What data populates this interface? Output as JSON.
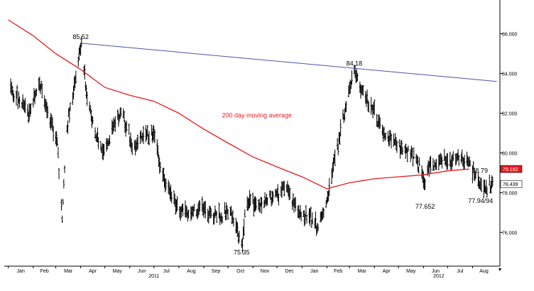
{
  "chart_data": {
    "type": "line",
    "series": [
      {
        "kind": "ohlc-bars",
        "color": "#000000",
        "anchors": [
          [
            "2010-01-04",
            83.3
          ],
          [
            "2010-01-15",
            82.6
          ],
          [
            "2010-01-28",
            82.0
          ],
          [
            "2010-02-08",
            83.6
          ],
          [
            "2010-02-19",
            82.0
          ],
          [
            "2010-03-03",
            80.6
          ],
          [
            "2010-03-09",
            76.7
          ],
          [
            "2010-03-14",
            81.0
          ],
          [
            "2010-03-24",
            83.4
          ],
          [
            "2010-04-02",
            85.52
          ],
          [
            "2010-04-08",
            83.0
          ],
          [
            "2010-04-18",
            81.2
          ],
          [
            "2010-04-30",
            80.0
          ],
          [
            "2010-05-10",
            81.3
          ],
          [
            "2010-05-22",
            82.2
          ],
          [
            "2010-06-04",
            80.2
          ],
          [
            "2010-06-18",
            80.9
          ],
          [
            "2010-07-01",
            81.0
          ],
          [
            "2010-07-10",
            79.0
          ],
          [
            "2010-07-22",
            78.0
          ],
          [
            "2010-08-02",
            77.0
          ],
          [
            "2010-08-18",
            77.0
          ],
          [
            "2010-09-01",
            77.2
          ],
          [
            "2010-09-18",
            76.8
          ],
          [
            "2010-10-05",
            77.0
          ],
          [
            "2010-10-19",
            75.35
          ],
          [
            "2010-10-23",
            77.5
          ],
          [
            "2010-11-05",
            77.4
          ],
          [
            "2010-11-18",
            77.6
          ],
          [
            "2010-12-01",
            78.0
          ],
          [
            "2010-12-14",
            78.2
          ],
          [
            "2010-12-28",
            77.0
          ],
          [
            "2011-01-10",
            76.8
          ],
          [
            "2011-01-21",
            76.2
          ],
          [
            "2011-02-01",
            77.6
          ],
          [
            "2011-02-12",
            80.0
          ],
          [
            "2011-02-24",
            82.2
          ],
          [
            "2011-03-07",
            84.18
          ],
          [
            "2011-03-18",
            83.0
          ],
          [
            "2011-03-30",
            82.2
          ],
          [
            "2011-04-12",
            81.0
          ],
          [
            "2011-04-25",
            80.6
          ],
          [
            "2011-05-09",
            80.2
          ],
          [
            "2011-05-24",
            79.6
          ],
          [
            "2011-06-03",
            78.4
          ],
          [
            "2011-06-09",
            79.4
          ],
          [
            "2011-06-20",
            79.6
          ],
          [
            "2011-07-01",
            79.6
          ],
          [
            "2011-07-14",
            79.8
          ],
          [
            "2011-07-26",
            79.6
          ],
          [
            "2011-08-04",
            78.9
          ],
          [
            "2011-08-15",
            78.2
          ],
          [
            "2011-08-26",
            78.44
          ]
        ]
      },
      {
        "name": "200 day moving average",
        "color": "#e8191f",
        "points": [
          [
            "2010-01-01",
            86.7
          ],
          [
            "2010-02-01",
            85.9
          ],
          [
            "2010-03-01",
            85.0
          ],
          [
            "2010-04-01",
            84.2
          ],
          [
            "2010-05-01",
            83.3
          ],
          [
            "2010-06-01",
            82.9
          ],
          [
            "2010-07-01",
            82.6
          ],
          [
            "2010-08-01",
            82.0
          ],
          [
            "2010-09-01",
            81.2
          ],
          [
            "2010-10-01",
            80.5
          ],
          [
            "2010-11-01",
            79.8
          ],
          [
            "2010-12-01",
            79.3
          ],
          [
            "2011-01-01",
            78.8
          ],
          [
            "2011-02-01",
            78.2
          ],
          [
            "2011-03-01",
            78.5
          ],
          [
            "2011-04-01",
            78.7
          ],
          [
            "2011-05-01",
            78.8
          ],
          [
            "2011-06-01",
            78.9
          ],
          [
            "2011-07-01",
            79.1
          ],
          [
            "2011-07-28",
            79.19
          ]
        ]
      },
      {
        "kind": "trendline",
        "color": "#5151a8",
        "points": [
          [
            "2010-04-03",
            85.52
          ],
          [
            "2011-08-31",
            83.6
          ]
        ]
      }
    ],
    "x_range": [
      "2009-12-27",
      "2011-09-04"
    ],
    "ylim": [
      74.3,
      87.7
    ],
    "y_ticks": [
      "76.000",
      "78.000",
      "80.000",
      "82.000",
      "84.000",
      "86.000"
    ],
    "month_ticks": [
      {
        "label": "Jan",
        "date": "2010-01-01"
      },
      {
        "label": "Feb",
        "date": "2010-02-01"
      },
      {
        "label": "Mar",
        "date": "2010-03-01"
      },
      {
        "label": "Apr",
        "date": "2010-04-01"
      },
      {
        "label": "May",
        "date": "2010-05-01"
      },
      {
        "label": "Jun",
        "date": "2010-06-01"
      },
      {
        "label": "Jul",
        "date": "2010-07-01"
      },
      {
        "label": "Aug",
        "date": "2010-08-01"
      },
      {
        "label": "Sep",
        "date": "2010-09-01"
      },
      {
        "label": "Oct",
        "date": "2010-10-01"
      },
      {
        "label": "Nov",
        "date": "2010-11-01"
      },
      {
        "label": "Dec",
        "date": "2010-12-01"
      },
      {
        "label": "Jan",
        "date": "2011-01-01"
      },
      {
        "label": "Feb",
        "date": "2011-02-01"
      },
      {
        "label": "Mar",
        "date": "2011-03-01"
      },
      {
        "label": "Apr",
        "date": "2011-04-01"
      },
      {
        "label": "May",
        "date": "2011-05-01"
      },
      {
        "label": "Jun",
        "date": "2011-06-01"
      },
      {
        "label": "Jul",
        "date": "2011-07-01"
      },
      {
        "label": "Aug",
        "date": "2011-08-01"
      }
    ],
    "year_labels": [
      {
        "label": "2011",
        "date": "2010-07-01"
      },
      {
        "label": "2012",
        "date": "2011-06-20"
      }
    ],
    "annotations": [
      {
        "text": "85.52",
        "date": "2010-04-01",
        "value": 85.52,
        "pos": "above"
      },
      {
        "text": "84.18",
        "date": "2011-03-07",
        "value": 84.18,
        "pos": "above"
      },
      {
        "text": "75.35",
        "date": "2010-10-18",
        "value": 75.35,
        "pos": "below"
      },
      {
        "text": "77.652",
        "date": "2011-06-03",
        "value": 77.652,
        "pos": "below"
      },
      {
        "text": "77.94/94",
        "date": "2011-08-11",
        "value": 77.94,
        "pos": "below"
      },
      {
        "text": "78.79",
        "date": "2011-08-10",
        "value": 78.79,
        "pos": "above"
      },
      {
        "text": "200 day moving average",
        "date": "2010-11-06",
        "value": 81.9,
        "pos": "center",
        "color": "#e8191f"
      }
    ],
    "price_boxes": [
      {
        "text": "79.192",
        "value": 79.192,
        "bg": "#e8191f",
        "fg": "#ffffff"
      },
      {
        "text": "78.439",
        "value": 78.439,
        "bg": "#ffffff",
        "fg": "#000000"
      }
    ],
    "grid": false
  }
}
